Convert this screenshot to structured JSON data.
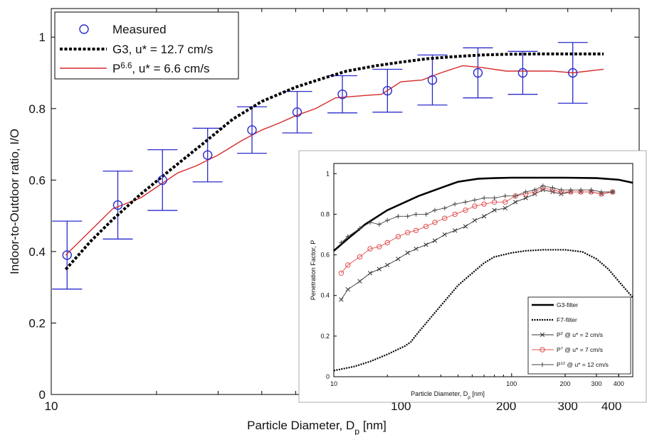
{
  "chart_data": [
    {
      "type": "line",
      "x_scale": "log",
      "xlabel": "Particle Diameter, D",
      "xlabel_sub": "p",
      "xlabel_unit": " [nm]",
      "ylabel": "Indoor-to-Outdoor ratio, I/O",
      "xlim": [
        10,
        480
      ],
      "ylim": [
        0,
        1.08
      ],
      "xticks": [
        10,
        100,
        200,
        300,
        400
      ],
      "yticks": [
        0,
        0.2,
        0.4,
        0.6,
        0.8,
        1
      ],
      "ytick_labels": [
        "0",
        "0.2",
        "0.4",
        "0.6",
        "0.8",
        "1"
      ],
      "legend_position": "top-left",
      "legend": [
        {
          "label": "Measured"
        },
        {
          "label": "G3, u* = 12.7 cm/s"
        },
        {
          "label_base": "P",
          "label_sup": "6.6",
          "label_rest": ", u* = 6.6 cm/s"
        }
      ],
      "measured": {
        "name": "Measured",
        "color": "#2b2bcc",
        "x": [
          11.1,
          15.5,
          20.8,
          28,
          37.5,
          50.5,
          68,
          91.5,
          123,
          166,
          223,
          310
        ],
        "y": [
          0.39,
          0.53,
          0.6,
          0.67,
          0.74,
          0.79,
          0.84,
          0.85,
          0.88,
          0.9,
          0.9,
          0.9
        ],
        "err": [
          0.095,
          0.095,
          0.085,
          0.075,
          0.065,
          0.058,
          0.052,
          0.06,
          0.07,
          0.07,
          0.06,
          0.085
        ]
      },
      "g3": {
        "name": "G3, u* = 12.7 cm/s",
        "color": "#000000",
        "x": [
          11,
          13,
          15,
          18,
          22,
          27,
          33,
          40,
          50,
          60,
          70,
          85,
          100,
          120,
          140,
          170,
          200,
          250,
          300,
          380
        ],
        "y": [
          0.35,
          0.43,
          0.49,
          0.56,
          0.63,
          0.7,
          0.77,
          0.82,
          0.86,
          0.885,
          0.905,
          0.92,
          0.93,
          0.94,
          0.945,
          0.95,
          0.952,
          0.953,
          0.953,
          0.953
        ]
      },
      "p66": {
        "name": "P6.6, u* = 6.6 cm/s",
        "color": "#d62a2a",
        "x": [
          11,
          13,
          15,
          18,
          20,
          23,
          26,
          30,
          35,
          40,
          45,
          50,
          57,
          65,
          75,
          88,
          100,
          115,
          130,
          150,
          170,
          200,
          230,
          270,
          310,
          380
        ],
        "y": [
          0.39,
          0.46,
          0.52,
          0.55,
          0.58,
          0.62,
          0.64,
          0.67,
          0.71,
          0.74,
          0.76,
          0.78,
          0.8,
          0.83,
          0.835,
          0.84,
          0.875,
          0.88,
          0.9,
          0.92,
          0.915,
          0.905,
          0.905,
          0.905,
          0.9,
          0.91
        ]
      }
    },
    {
      "type": "line",
      "x_scale": "log",
      "xlabel": "Particle Diameter, D",
      "xlabel_sub": "p",
      "xlabel_unit": " [nm]",
      "ylabel": "Penetration Factor, P",
      "xlim": [
        10,
        480
      ],
      "ylim": [
        0,
        1.05
      ],
      "xticks": [
        10,
        100,
        200,
        300,
        400
      ],
      "yticks": [
        0,
        0.2,
        0.4,
        0.6,
        0.8,
        1
      ],
      "ytick_labels": [
        "0",
        "0.2",
        "0.4",
        "0.6",
        "0.8",
        "1"
      ],
      "legend_position": "bottom-right",
      "legend": [
        {
          "label": "G3-filter"
        },
        {
          "label": "F7-filter"
        },
        {
          "label_base": "P",
          "label_sup": "2",
          "label_rest": " @ u* = 2 cm/s"
        },
        {
          "label_base": "P",
          "label_sup": "7",
          "label_rest": " @ u* = 7 cm/s"
        },
        {
          "label_base": "P",
          "label_sup": "12",
          "label_rest": " @ u* = 12 cm/s"
        }
      ],
      "series": [
        {
          "name": "G3-filter",
          "style": "solid-thick",
          "color": "#000000",
          "x": [
            10,
            12,
            15,
            20,
            30,
            40,
            50,
            65,
            80,
            100,
            150,
            200,
            300,
            400,
            480
          ],
          "y": [
            0.62,
            0.68,
            0.75,
            0.82,
            0.89,
            0.93,
            0.96,
            0.975,
            0.978,
            0.98,
            0.98,
            0.98,
            0.978,
            0.97,
            0.955
          ]
        },
        {
          "name": "F7-filter",
          "style": "dotted",
          "color": "#000000",
          "x": [
            10,
            13,
            16,
            20,
            25,
            27,
            30,
            35,
            40,
            50,
            60,
            70,
            80,
            100,
            120,
            150,
            200,
            250,
            300,
            350,
            400,
            480
          ],
          "y": [
            0.03,
            0.05,
            0.075,
            0.11,
            0.15,
            0.17,
            0.22,
            0.29,
            0.35,
            0.45,
            0.51,
            0.56,
            0.59,
            0.61,
            0.62,
            0.625,
            0.625,
            0.615,
            0.58,
            0.53,
            0.47,
            0.39
          ]
        },
        {
          "name": "P2 @ u* = 2 cm/s",
          "style": "x-marker",
          "color": "#333333",
          "x": [
            11,
            12,
            14,
            16,
            18,
            20,
            23,
            26,
            29,
            33,
            37,
            42,
            48,
            55,
            62,
            70,
            80,
            92,
            105,
            120,
            135,
            150,
            170,
            190,
            215,
            245,
            280,
            320,
            370
          ],
          "y": [
            0.38,
            0.43,
            0.47,
            0.51,
            0.53,
            0.55,
            0.58,
            0.61,
            0.63,
            0.65,
            0.67,
            0.7,
            0.72,
            0.74,
            0.77,
            0.79,
            0.82,
            0.83,
            0.86,
            0.88,
            0.9,
            0.92,
            0.91,
            0.9,
            0.91,
            0.91,
            0.91,
            0.9,
            0.91
          ]
        },
        {
          "name": "P7 @ u* = 7 cm/s",
          "style": "circle-marker",
          "color": "#e05050",
          "x": [
            11,
            12,
            14,
            16,
            18,
            20,
            23,
            26,
            29,
            33,
            37,
            42,
            48,
            55,
            62,
            70,
            80,
            92,
            105,
            120,
            135,
            150,
            170,
            190,
            215,
            245,
            280,
            320,
            370
          ],
          "y": [
            0.51,
            0.55,
            0.59,
            0.63,
            0.64,
            0.66,
            0.69,
            0.71,
            0.72,
            0.74,
            0.76,
            0.78,
            0.8,
            0.82,
            0.84,
            0.85,
            0.86,
            0.86,
            0.89,
            0.9,
            0.91,
            0.93,
            0.92,
            0.91,
            0.91,
            0.91,
            0.91,
            0.9,
            0.91
          ]
        },
        {
          "name": "P12 @ u* = 12 cm/s",
          "style": "plus-marker",
          "color": "#444444",
          "x": [
            11,
            12,
            14,
            16,
            18,
            20,
            23,
            26,
            29,
            33,
            37,
            42,
            48,
            55,
            62,
            70,
            80,
            92,
            105,
            120,
            135,
            150,
            170,
            190,
            215,
            245,
            280,
            320,
            370
          ],
          "y": [
            0.66,
            0.69,
            0.73,
            0.76,
            0.75,
            0.77,
            0.79,
            0.79,
            0.8,
            0.8,
            0.82,
            0.83,
            0.85,
            0.86,
            0.87,
            0.88,
            0.88,
            0.89,
            0.89,
            0.91,
            0.92,
            0.94,
            0.93,
            0.92,
            0.92,
            0.92,
            0.92,
            0.91,
            0.91
          ]
        }
      ]
    }
  ]
}
